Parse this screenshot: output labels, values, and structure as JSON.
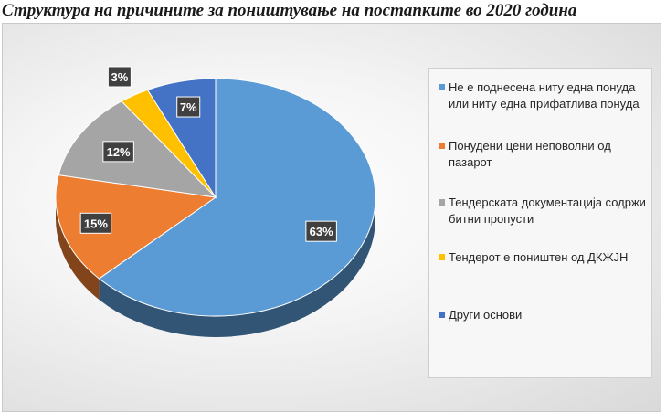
{
  "title": "Структура на причините за поништување на постапките во 2020 година",
  "chart_data": {
    "type": "pie",
    "title": "Структура на причините за поништување на постапките во 2020 година",
    "categories": [
      "Не е поднесена ниту една понуда или ниту една прифатлива понуда",
      "Понудени цени непoволни од пазарот",
      "Тендерската документација содржи битни пропусти",
      "Тендерот е поништен од ДКЖЈН",
      "Други основи"
    ],
    "values": [
      63,
      15,
      12,
      3,
      7
    ],
    "labels": [
      "63%",
      "15%",
      "12%",
      "3%",
      "7%"
    ],
    "colors": [
      "#5b9bd5",
      "#ed7d31",
      "#a5a5a5",
      "#ffc000",
      "#4472c4"
    ],
    "legend_position": "right"
  },
  "legend": {
    "items": [
      "Не е поднесена ниту една понуда или ниту една прифатлива понуда",
      "Понудени цени неповолни од пазарот",
      "Тендерската документација содржи битни пропусти",
      "Тендерот е поништен од ДКЖЈН",
      "Други основи"
    ]
  }
}
